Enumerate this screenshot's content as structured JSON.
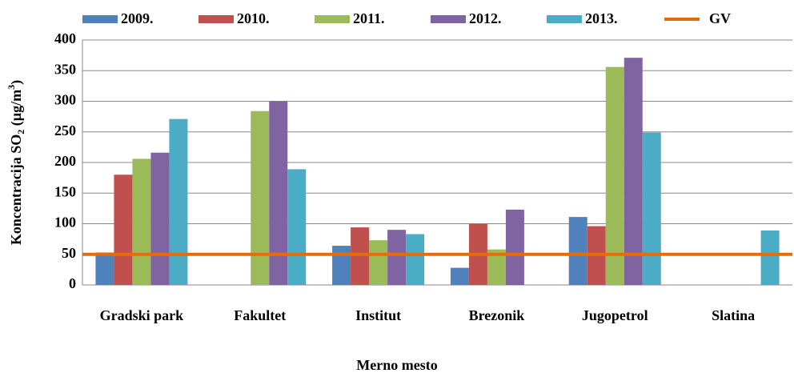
{
  "chart_data": {
    "type": "bar",
    "ylabel": [
      "Koncentracija SO",
      "2",
      " (µg/m",
      "3",
      ")"
    ],
    "xlabel": "Merno mesto",
    "categories": [
      "Gradski park",
      "Fakultet",
      "Institut",
      "Brezonik",
      "Jugopetrol",
      "Slatina"
    ],
    "series": [
      {
        "name": "2009.",
        "color": "#4f81bd",
        "values": [
          53,
          null,
          64,
          28,
          111,
          null
        ]
      },
      {
        "name": "2010.",
        "color": "#c0504d",
        "values": [
          180,
          null,
          94,
          100,
          96,
          null
        ]
      },
      {
        "name": "2011.",
        "color": "#9bbb59",
        "values": [
          206,
          284,
          73,
          58,
          356,
          null
        ]
      },
      {
        "name": "2012.",
        "color": "#8064a2",
        "values": [
          216,
          300,
          90,
          123,
          371,
          null
        ]
      },
      {
        "name": "2013.",
        "color": "#4bacc6",
        "values": [
          271,
          189,
          83,
          null,
          249,
          89
        ]
      }
    ],
    "reference_lines": [
      {
        "name": "GV",
        "value": 50,
        "color": "#e46c0a"
      }
    ],
    "ylim": [
      0,
      400
    ],
    "yticks": [
      0,
      50,
      100,
      150,
      200,
      250,
      300,
      350,
      400
    ],
    "grid": true,
    "legend": "top"
  }
}
